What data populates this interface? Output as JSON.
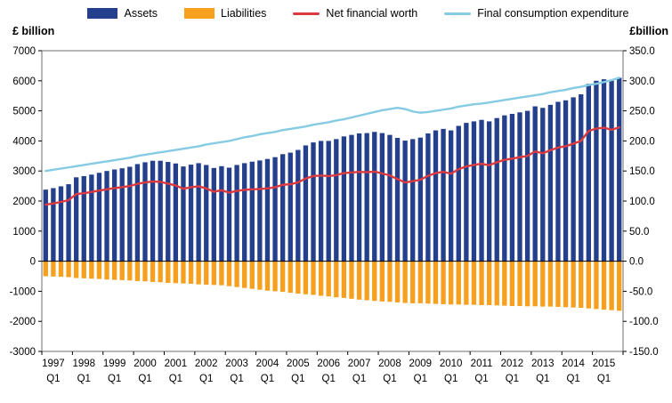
{
  "left_axis_title": "£ billion",
  "right_axis_title": "£billion",
  "legend": [
    {
      "label": "Assets",
      "type": "bar",
      "color": "#24408c"
    },
    {
      "label": "Liabilities",
      "type": "bar",
      "color": "#f7a01e"
    },
    {
      "label": "Net financial worth",
      "type": "line",
      "color": "#dd3a3f"
    },
    {
      "label": "Final consumption expenditure",
      "type": "line",
      "color": "#85cbe2"
    }
  ],
  "chart_data": {
    "type": "bar",
    "subtype": "combo-bar-line",
    "categories": [
      "1997 Q1",
      "1997 Q2",
      "1997 Q3",
      "1997 Q4",
      "1998 Q1",
      "1998 Q2",
      "1998 Q3",
      "1998 Q4",
      "1999 Q1",
      "1999 Q2",
      "1999 Q3",
      "1999 Q4",
      "2000 Q1",
      "2000 Q2",
      "2000 Q3",
      "2000 Q4",
      "2001 Q1",
      "2001 Q2",
      "2001 Q3",
      "2001 Q4",
      "2002 Q1",
      "2002 Q2",
      "2002 Q3",
      "2002 Q4",
      "2003 Q1",
      "2003 Q2",
      "2003 Q3",
      "2003 Q4",
      "2004 Q1",
      "2004 Q2",
      "2004 Q3",
      "2004 Q4",
      "2005 Q1",
      "2005 Q2",
      "2005 Q3",
      "2005 Q4",
      "2006 Q1",
      "2006 Q2",
      "2006 Q3",
      "2006 Q4",
      "2007 Q1",
      "2007 Q2",
      "2007 Q3",
      "2007 Q4",
      "2008 Q1",
      "2008 Q2",
      "2008 Q3",
      "2008 Q4",
      "2009 Q1",
      "2009 Q2",
      "2009 Q3",
      "2009 Q4",
      "2010 Q1",
      "2010 Q2",
      "2010 Q3",
      "2010 Q4",
      "2011 Q1",
      "2011 Q2",
      "2011 Q3",
      "2011 Q4",
      "2012 Q1",
      "2012 Q2",
      "2012 Q3",
      "2012 Q4",
      "2013 Q1",
      "2013 Q2",
      "2013 Q3",
      "2013 Q4",
      "2014 Q1",
      "2014 Q2",
      "2014 Q3",
      "2014 Q4",
      "2015 Q1",
      "2015 Q2",
      "2015 Q3",
      "2015 Q4"
    ],
    "series": [
      {
        "name": "Assets",
        "type": "bar",
        "axis": "left",
        "color": "#24408c",
        "values": [
          2380,
          2430,
          2490,
          2560,
          2790,
          2830,
          2880,
          2940,
          3000,
          3050,
          3090,
          3140,
          3230,
          3290,
          3340,
          3340,
          3300,
          3250,
          3150,
          3210,
          3260,
          3200,
          3100,
          3160,
          3110,
          3200,
          3260,
          3310,
          3350,
          3400,
          3460,
          3560,
          3610,
          3700,
          3850,
          3950,
          4000,
          4000,
          4060,
          4150,
          4200,
          4250,
          4260,
          4300,
          4260,
          4200,
          4100,
          4010,
          4060,
          4110,
          4250,
          4350,
          4400,
          4350,
          4500,
          4600,
          4650,
          4700,
          4650,
          4760,
          4850,
          4900,
          4950,
          5000,
          5150,
          5100,
          5200,
          5300,
          5350,
          5450,
          5550,
          5900,
          6000,
          6050,
          6000,
          6100
        ]
      },
      {
        "name": "Liabilities",
        "type": "bar",
        "axis": "left",
        "color": "#f7a01e",
        "values": [
          -500,
          -510,
          -520,
          -530,
          -560,
          -570,
          -580,
          -590,
          -610,
          -620,
          -630,
          -640,
          -660,
          -670,
          -690,
          -700,
          -720,
          -730,
          -740,
          -750,
          -770,
          -780,
          -790,
          -800,
          -830,
          -860,
          -890,
          -920,
          -950,
          -980,
          -1000,
          -1020,
          -1050,
          -1080,
          -1100,
          -1120,
          -1150,
          -1170,
          -1200,
          -1220,
          -1250,
          -1280,
          -1300,
          -1320,
          -1340,
          -1350,
          -1370,
          -1390,
          -1400,
          -1400,
          -1410,
          -1420,
          -1430,
          -1440,
          -1440,
          -1450,
          -1450,
          -1460,
          -1460,
          -1470,
          -1480,
          -1490,
          -1490,
          -1500,
          -1500,
          -1510,
          -1510,
          -1520,
          -1530,
          -1540,
          -1550,
          -1570,
          -1590,
          -1610,
          -1630,
          -1650
        ]
      },
      {
        "name": "Net financial worth",
        "type": "line",
        "axis": "right",
        "color": "#dd3a3f",
        "values": [
          94,
          96,
          98.5,
          101.5,
          111.5,
          113,
          115,
          117.5,
          119.5,
          121.5,
          123,
          125,
          128.5,
          131,
          132.5,
          132,
          129,
          126,
          120.5,
          123,
          124.5,
          121,
          115.5,
          118,
          114,
          117,
          118.5,
          119.5,
          120,
          121,
          123,
          127,
          128,
          131,
          137.5,
          141.5,
          142.5,
          141.5,
          143,
          146.5,
          147.5,
          148.5,
          148,
          149,
          146,
          142.5,
          136.5,
          131,
          133,
          135.5,
          142,
          146.5,
          148.5,
          145.5,
          153,
          157.5,
          160,
          162,
          159.5,
          164.5,
          168.5,
          170.5,
          173,
          175,
          182.5,
          179.5,
          184.5,
          189,
          191,
          195.5,
          200,
          216.5,
          220.5,
          222,
          218.5,
          222.5
        ]
      },
      {
        "name": "Final consumption expenditure",
        "type": "line",
        "axis": "right",
        "color": "#85cbe2",
        "values": [
          150,
          152,
          154,
          156,
          158,
          160,
          162,
          164,
          166,
          168,
          170,
          172,
          175,
          177,
          179,
          181,
          183,
          185,
          187,
          189,
          191,
          194,
          196,
          198,
          200,
          203,
          206,
          208,
          211,
          213,
          215,
          218,
          220,
          222,
          224,
          227,
          229,
          231,
          234,
          236,
          239,
          242,
          245,
          248,
          251,
          253,
          255,
          253,
          249,
          247,
          248,
          250,
          252,
          254,
          257,
          259,
          261,
          262,
          264,
          266,
          268,
          270,
          272,
          274,
          276,
          278,
          281,
          283,
          285,
          288,
          290,
          293,
          295,
          298,
          301,
          305
        ]
      }
    ],
    "left_axis": {
      "title": "£ billion",
      "min": -3000,
      "max": 7000,
      "step": 1000,
      "ticks": [
        7000,
        6000,
        5000,
        4000,
        3000,
        2000,
        1000,
        0,
        -1000,
        -2000,
        -3000
      ]
    },
    "right_axis": {
      "title": "£billion",
      "min": -150,
      "max": 350,
      "step": 50,
      "ticks": [
        "350.0",
        "300.0",
        "250.0",
        "200.0",
        "150.0",
        "100.0",
        "50.0",
        "0.0",
        "-50.0",
        "-100.0",
        "-150.0"
      ]
    },
    "x_tick_labels": [
      {
        "year": "1997",
        "quarter": "Q1"
      },
      {
        "year": "1998",
        "quarter": "Q1"
      },
      {
        "year": "1999",
        "quarter": "Q1"
      },
      {
        "year": "2000",
        "quarter": "Q1"
      },
      {
        "year": "2001",
        "quarter": "Q1"
      },
      {
        "year": "2002",
        "quarter": "Q1"
      },
      {
        "year": "2003",
        "quarter": "Q1"
      },
      {
        "year": "2004",
        "quarter": "Q1"
      },
      {
        "year": "2005",
        "quarter": "Q1"
      },
      {
        "year": "2006",
        "quarter": "Q1"
      },
      {
        "year": "2007",
        "quarter": "Q1"
      },
      {
        "year": "2008",
        "quarter": "Q1"
      },
      {
        "year": "2009",
        "quarter": "Q1"
      },
      {
        "year": "2010",
        "quarter": "Q1"
      },
      {
        "year": "2011",
        "quarter": "Q1"
      },
      {
        "year": "2012",
        "quarter": "Q1"
      },
      {
        "year": "2013",
        "quarter": "Q1"
      },
      {
        "year": "2014",
        "quarter": "Q1"
      },
      {
        "year": "2015",
        "quarter": "Q1"
      }
    ],
    "grid": false,
    "legend_position": "top"
  }
}
